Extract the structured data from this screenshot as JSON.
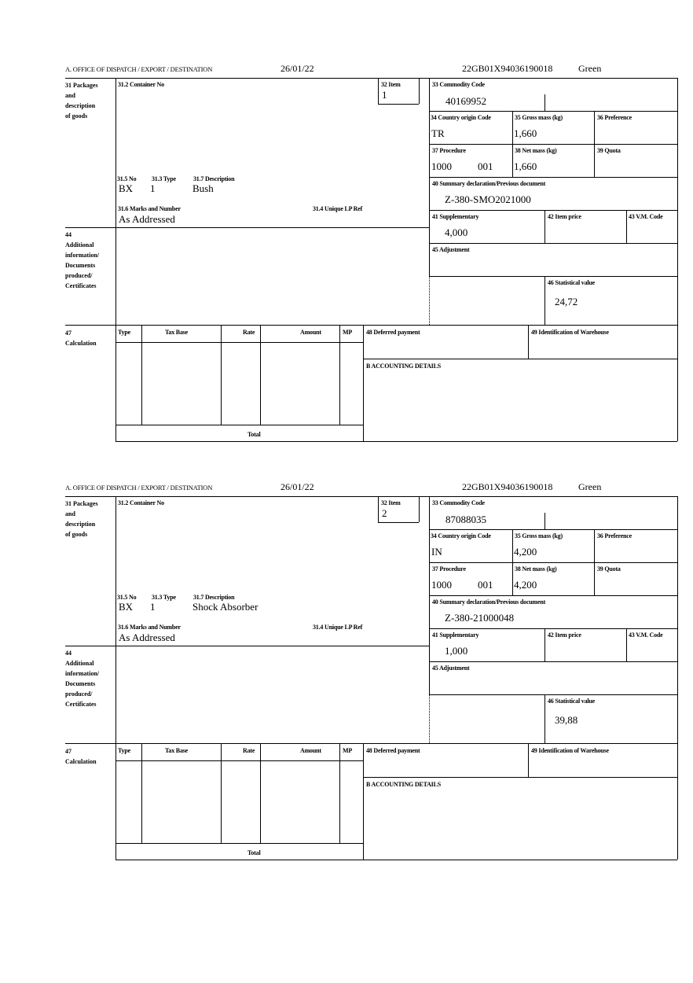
{
  "labels": {
    "office": "A.  OFFICE OF DISPATCH / EXPORT / DESTINATION",
    "box31": [
      "31 Packages",
      "and",
      "description",
      "of goods"
    ],
    "container_no": "31.2 Container No",
    "item": "32 Item",
    "no": "31.5 No",
    "type": "31.3 Type",
    "description": "31.7 Description",
    "marks": "31.6 Marks and Number",
    "unique_lp": "31.4 Unique LP Ref",
    "commodity_code": "33 Commodity Code",
    "country_origin": "34 Country origin Code",
    "gross_mass": "35 Gross mass (kg)",
    "preference": "36 Preference",
    "procedure": "37 Procedure",
    "net_mass": "38 Net mass (kg)",
    "quota": "39 Quota",
    "summary_decl": "40 Summary declaration/Previous document",
    "supplementary": "41 Supplementary",
    "item_price": "42 Item price",
    "vm_code": "43 V.M. Code",
    "box44": [
      "44",
      "Additional",
      "information/",
      "Documents",
      "produced/",
      "Certificates"
    ],
    "adjustment": "45 Adjustment",
    "statistical_value": "46 Statistical value",
    "box47": [
      "47",
      "Calculation"
    ],
    "calc_cols": [
      "Type",
      "Tax Base",
      "Rate",
      "Amount",
      "MP"
    ],
    "total": "Total",
    "deferred_payment": "48 Deferred payment",
    "warehouse": "49 Identification of Warehouse",
    "accounting": "B ACCOUNTING DETAILS"
  },
  "items": [
    {
      "date": "26/01/22",
      "reference": "22GB01X94036190018",
      "route": "Green",
      "item_no": "1",
      "pkg_no": "BX",
      "pkg_type": "1",
      "description": "Bush",
      "marks": "As Addressed",
      "commodity_code": "40169952",
      "country_origin": "TR",
      "gross_mass": "1,660",
      "procedure": "1000",
      "procedure_add": "001",
      "net_mass": "1,660",
      "summary_decl": "Z-380-SMO2021000",
      "supplementary": "4,000",
      "statistical_value": "24,72"
    },
    {
      "date": "26/01/22",
      "reference": "22GB01X94036190018",
      "route": "Green",
      "item_no": "2",
      "pkg_no": "BX",
      "pkg_type": "1",
      "description": "Shock Absorber",
      "marks": "As Addressed",
      "commodity_code": "87088035",
      "country_origin": "IN",
      "gross_mass": "4,200",
      "procedure": "1000",
      "procedure_add": "001",
      "net_mass": "4,200",
      "summary_decl": "Z-380-21000048",
      "supplementary": "1,000",
      "statistical_value": "39,88"
    }
  ]
}
